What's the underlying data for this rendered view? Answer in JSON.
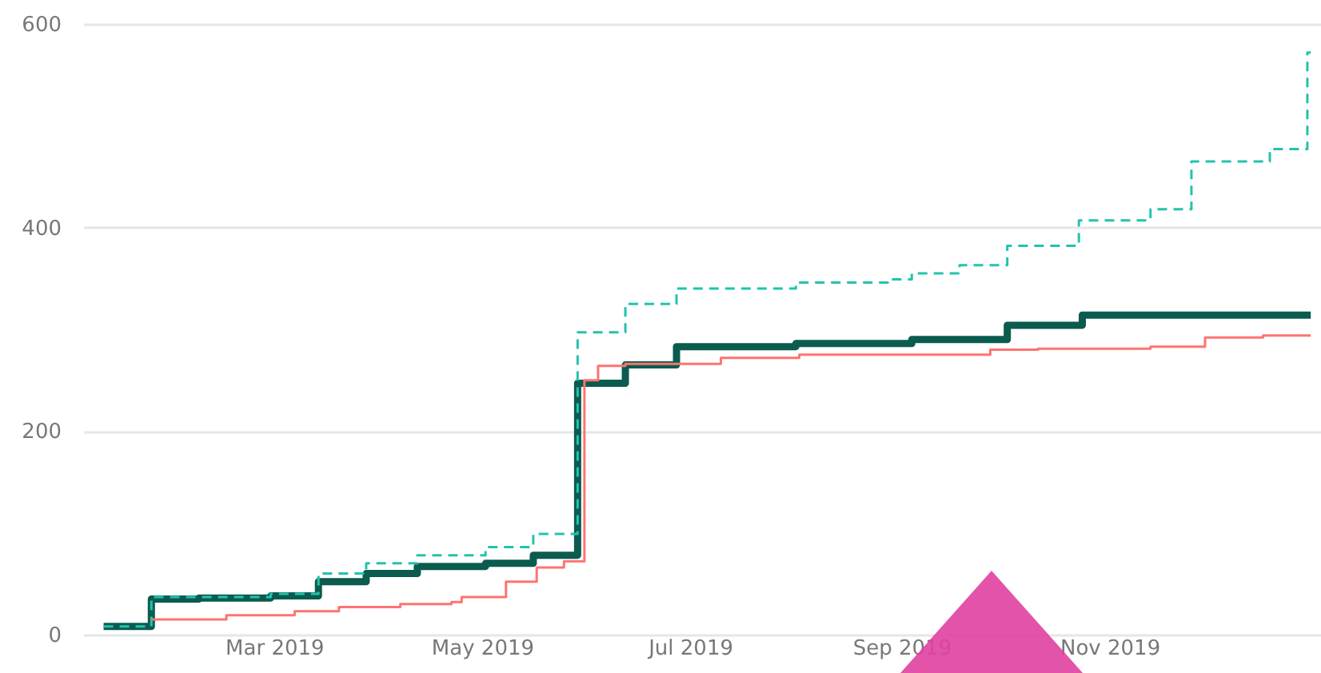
{
  "chart_data": {
    "type": "step",
    "xlim": [
      "2019-01-04",
      "2020-01-02"
    ],
    "ylim": [
      0,
      600
    ],
    "yticks": [
      0,
      200,
      400,
      600
    ],
    "xticks": [
      {
        "value": "2019-03-01",
        "label": "Mar 2019"
      },
      {
        "value": "2019-05-01",
        "label": "May 2019"
      },
      {
        "value": "2019-07-01",
        "label": "Jul 2019"
      },
      {
        "value": "2019-09-01",
        "label": "Sep 2019"
      },
      {
        "value": "2019-11-01",
        "label": "Nov 2019"
      }
    ],
    "grid": "y",
    "series": [
      {
        "color": "#21c4ad",
        "line_style": "dashed",
        "x": [
          "2019-01-10",
          "2019-01-24",
          "2019-02-28",
          "2019-03-14",
          "2019-03-28",
          "2019-04-12",
          "2019-05-02",
          "2019-05-16",
          "2019-05-29",
          "2019-06-12",
          "2019-06-27",
          "2019-08-01",
          "2019-08-28",
          "2019-09-04",
          "2019-09-18",
          "2019-10-02",
          "2019-10-23",
          "2019-11-13",
          "2019-11-25",
          "2019-12-18",
          "2019-12-29",
          "2019-12-30"
        ],
        "values": [
          8,
          37,
          40,
          60,
          70,
          78,
          86,
          99,
          297,
          325,
          340,
          346,
          349,
          355,
          363,
          382,
          407,
          418,
          465,
          477,
          572,
          572
        ]
      },
      {
        "color": "#fd7471",
        "line_style": "solid",
        "x": [
          "2019-01-24",
          "2019-02-15",
          "2019-03-07",
          "2019-03-20",
          "2019-04-07",
          "2019-04-22",
          "2019-04-25",
          "2019-05-08",
          "2019-05-17",
          "2019-05-25",
          "2019-05-31",
          "2019-06-04",
          "2019-06-12",
          "2019-07-10",
          "2019-08-02",
          "2019-09-27",
          "2019-10-11",
          "2019-11-13",
          "2019-11-29",
          "2019-12-16",
          "2019-12-30"
        ],
        "values": [
          15,
          19,
          23,
          27,
          30,
          32,
          37,
          52,
          66,
          72,
          250,
          264,
          266,
          272,
          275,
          280,
          281,
          283,
          292,
          294,
          294
        ]
      },
      {
        "color": "#0b5b4f",
        "line_style": "solid",
        "x": [
          "2019-01-10",
          "2019-01-24",
          "2019-02-07",
          "2019-02-28",
          "2019-03-14",
          "2019-03-28",
          "2019-04-12",
          "2019-05-02",
          "2019-05-16",
          "2019-05-29",
          "2019-06-12",
          "2019-06-27",
          "2019-08-01",
          "2019-09-04",
          "2019-10-02",
          "2019-10-24",
          "2019-12-30"
        ],
        "values": [
          8,
          35,
          36,
          38,
          52,
          60,
          67,
          70,
          78,
          247,
          265,
          283,
          286,
          290,
          304,
          314,
          314
        ]
      }
    ]
  }
}
